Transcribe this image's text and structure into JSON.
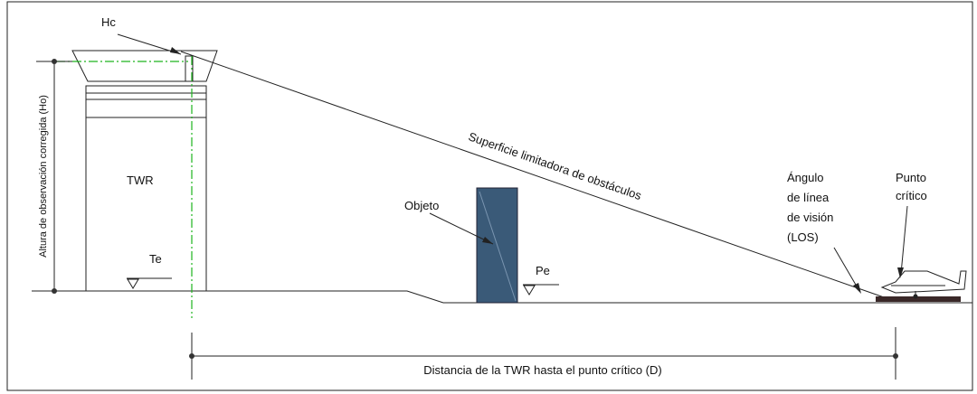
{
  "labels": {
    "hc": "Hc",
    "ho": "Altura de observación corregida (Ho)",
    "twr": "TWR",
    "te": "Te",
    "objeto": "Objeto",
    "pe": "Pe",
    "superficie": "Superficie limitadora de obstáculos",
    "angulo": [
      "Ángulo",
      "de línea",
      "de visión",
      "(LOS)"
    ],
    "punto": [
      "Punto",
      "crítico"
    ],
    "distancia": "Distancia de la TWR hasta el punto crítico (D)"
  }
}
